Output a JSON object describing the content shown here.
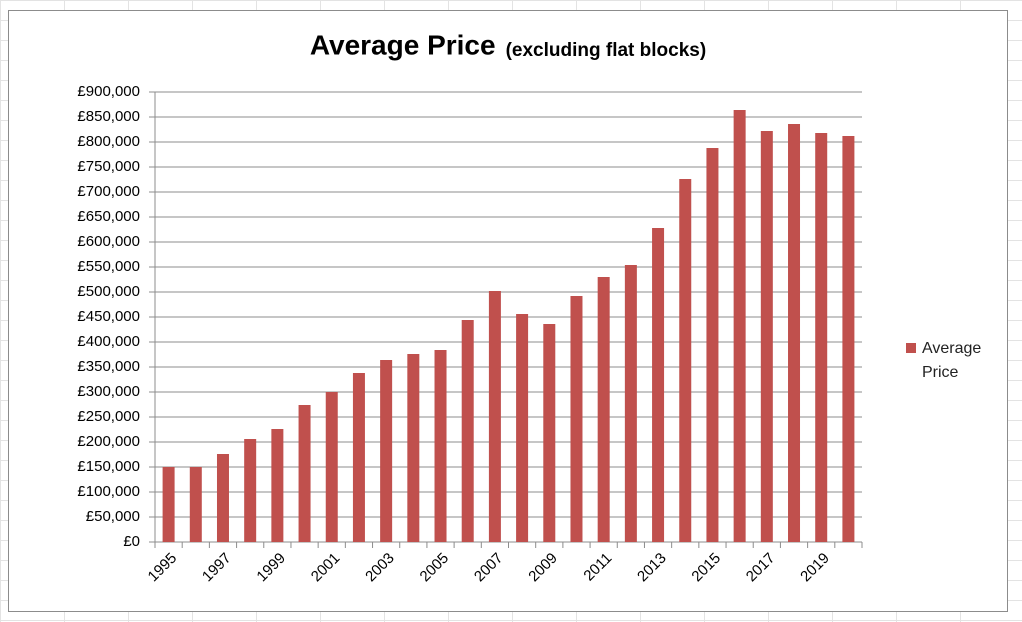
{
  "chart_data": {
    "type": "bar",
    "title": "Average Price",
    "subtitle": "(excluding flat blocks)",
    "categories": [
      "1995",
      null,
      "1997",
      null,
      "1999",
      null,
      "2001",
      null,
      "2003",
      null,
      "2005",
      null,
      "2007",
      null,
      "2009",
      null,
      "2011",
      null,
      "2013",
      null,
      "2015",
      null,
      "2017",
      null,
      "2019",
      null
    ],
    "series": [
      {
        "name": "Average Price",
        "color": "#c0504d",
        "values": [
          150000,
          150000,
          176000,
          206000,
          226000,
          274000,
          300000,
          338000,
          364000,
          376000,
          384000,
          444000,
          502000,
          456000,
          436000,
          492000,
          530000,
          554000,
          628000,
          726000,
          788000,
          864000,
          822000,
          836000,
          818000,
          812000
        ]
      }
    ],
    "ylim": [
      0,
      900000
    ],
    "yticks": [
      {
        "value": 0,
        "label": "£0"
      },
      {
        "value": 50000,
        "label": "£50,000"
      },
      {
        "value": 100000,
        "label": "£100,000"
      },
      {
        "value": 150000,
        "label": "£150,000"
      },
      {
        "value": 200000,
        "label": "£200,000"
      },
      {
        "value": 250000,
        "label": "£250,000"
      },
      {
        "value": 300000,
        "label": "£300,000"
      },
      {
        "value": 350000,
        "label": "£350,000"
      },
      {
        "value": 400000,
        "label": "£400,000"
      },
      {
        "value": 450000,
        "label": "£450,000"
      },
      {
        "value": 500000,
        "label": "£500,000"
      },
      {
        "value": 550000,
        "label": "£550,000"
      },
      {
        "value": 600000,
        "label": "£600,000"
      },
      {
        "value": 650000,
        "label": "£650,000"
      },
      {
        "value": 700000,
        "label": "£700,000"
      },
      {
        "value": 750000,
        "label": "£750,000"
      },
      {
        "value": 800000,
        "label": "£800,000"
      },
      {
        "value": 850000,
        "label": "£850,000"
      },
      {
        "value": 900000,
        "label": "£900,000"
      }
    ],
    "grid": true,
    "legend": "right"
  }
}
